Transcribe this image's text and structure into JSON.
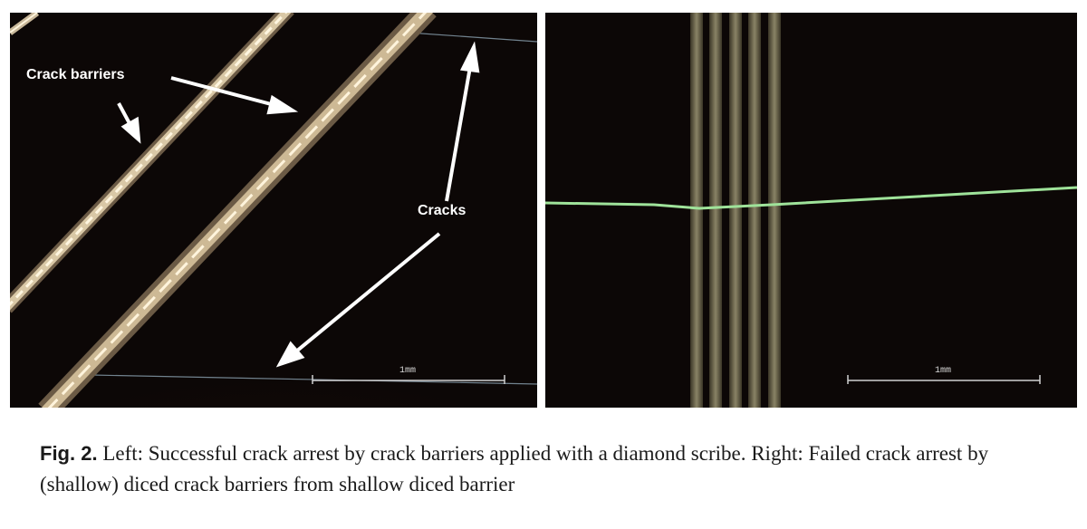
{
  "figure": {
    "left_panel": {
      "label_crack_barriers": "Crack barriers",
      "label_cracks": "Cracks",
      "scale_bar_label": "1mm"
    },
    "right_panel": {
      "scale_bar_label": "1mm"
    },
    "caption": {
      "fig_number": "Fig. 2.",
      "text": "Left: Successful crack arrest by crack barriers applied with a diamond scribe. Right: Failed crack arrest by (shallow) diced crack barriers from shallow diced barrier"
    }
  },
  "colors": {
    "background_dark": "#0c0706",
    "crack_line": "#9fe39a",
    "barrier_highlight": "#e8dcc0"
  }
}
